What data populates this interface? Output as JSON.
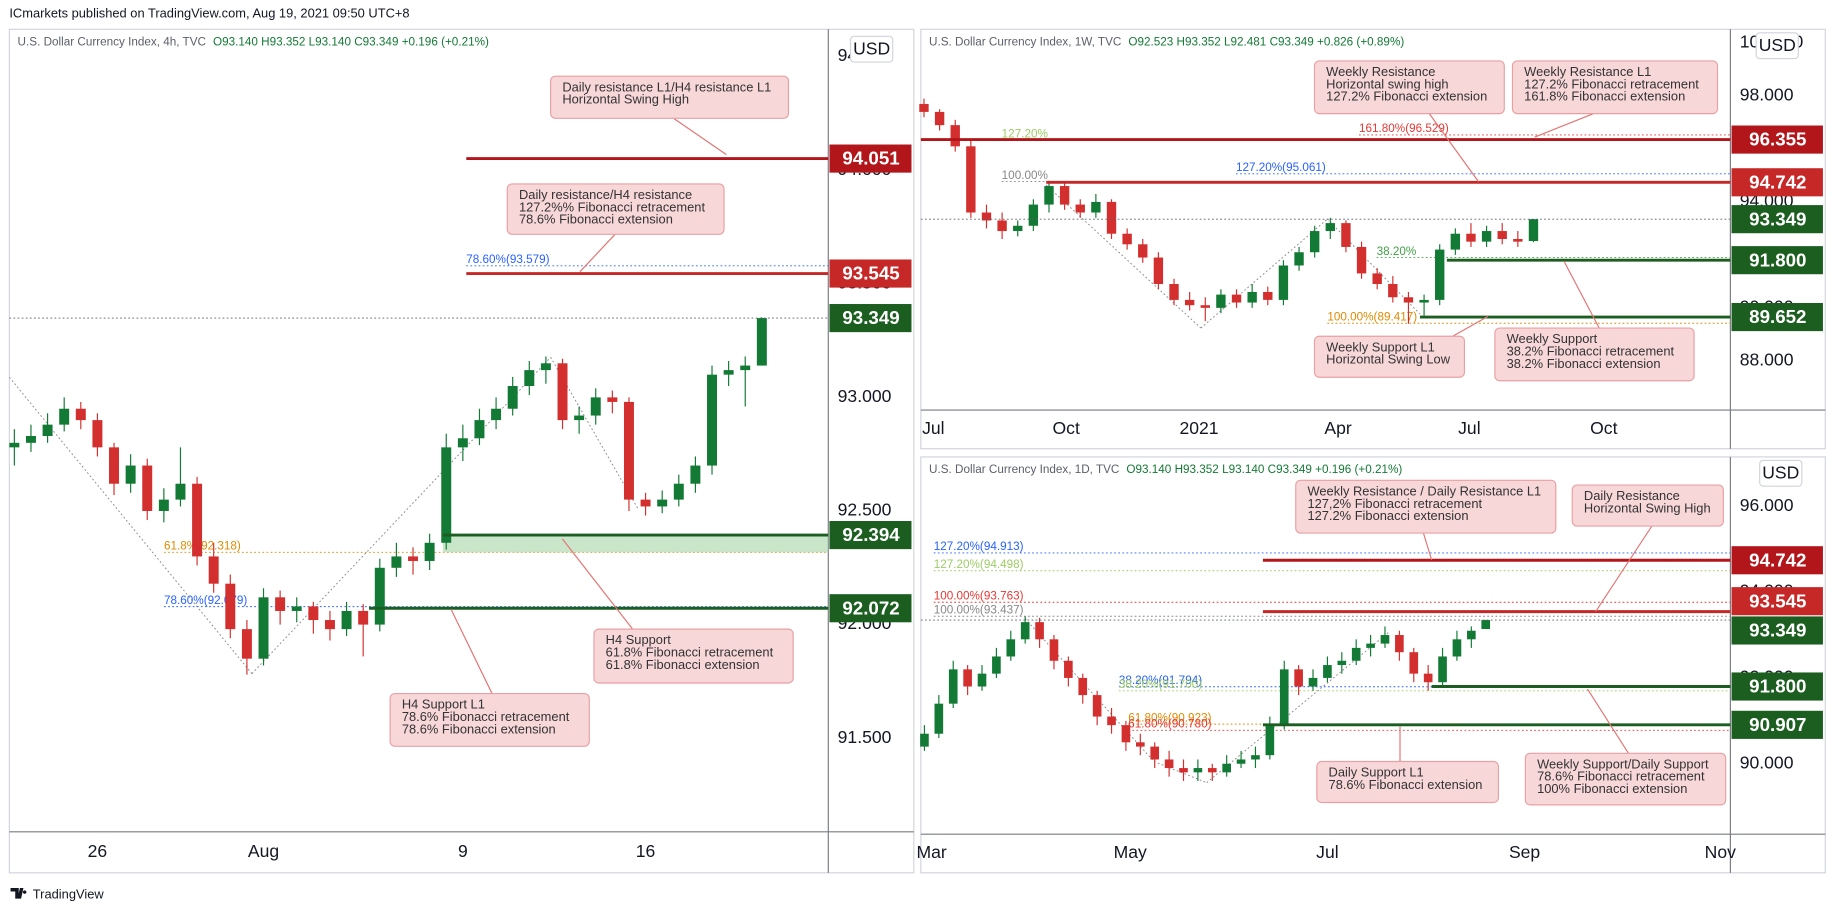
{
  "header": "ICmarkets published on TradingView.com, Aug 19, 2021 09:50 UTC+8",
  "footer": "TradingView",
  "chart_data": [
    {
      "type": "candlestick",
      "legend_name": "U.S. Dollar Currency Index, 4h, TVC",
      "legend_values": "O93.140 H93.352 L93.140 C93.349 +0.196 (+0.21%)",
      "currency": "USD",
      "up_color": "#137a35",
      "down_color": "#d32f2f",
      "ylim": [
        91.088,
        94.62
      ],
      "yticks": [
        {
          "value": 91.5,
          "label": "91.500"
        },
        {
          "value": 92,
          "label": "92.000"
        },
        {
          "value": 92.5,
          "label": "92.500"
        },
        {
          "value": 93,
          "label": "93.000"
        },
        {
          "value": 93.5,
          "label": "93.500"
        },
        {
          "value": 94,
          "label": "94.000"
        },
        {
          "value": 94.5,
          "label": "94.500"
        }
      ],
      "xlim": [
        -0.3,
        49
      ],
      "xticks": [
        {
          "value": 5,
          "label": "26"
        },
        {
          "value": 15,
          "label": "Aug"
        },
        {
          "value": 27,
          "label": "9"
        },
        {
          "value": 38,
          "label": "16"
        }
      ],
      "ohlc": [
        [
          92.78,
          92.86,
          92.7,
          92.8
        ],
        [
          92.8,
          92.88,
          92.76,
          92.83
        ],
        [
          92.83,
          92.93,
          92.8,
          92.88
        ],
        [
          92.88,
          93.0,
          92.85,
          92.95
        ],
        [
          92.95,
          92.98,
          92.86,
          92.9
        ],
        [
          92.9,
          92.93,
          92.74,
          92.78
        ],
        [
          92.78,
          92.8,
          92.57,
          92.62
        ],
        [
          92.62,
          92.75,
          92.58,
          92.7
        ],
        [
          92.7,
          92.73,
          92.46,
          92.5
        ],
        [
          92.5,
          92.6,
          92.45,
          92.55
        ],
        [
          92.55,
          92.78,
          92.52,
          92.62
        ],
        [
          92.62,
          92.65,
          92.26,
          92.3
        ],
        [
          92.3,
          92.36,
          92.14,
          92.18
        ],
        [
          92.18,
          92.22,
          91.94,
          91.98
        ],
        [
          91.98,
          92.02,
          91.78,
          91.85
        ],
        [
          91.85,
          92.16,
          91.82,
          92.12
        ],
        [
          92.12,
          92.15,
          92.0,
          92.06
        ],
        [
          92.06,
          92.12,
          92.01,
          92.08
        ],
        [
          92.08,
          92.1,
          91.96,
          92.02
        ],
        [
          92.02,
          92.06,
          91.93,
          91.98
        ],
        [
          91.98,
          92.1,
          91.95,
          92.06
        ],
        [
          92.06,
          92.09,
          91.86,
          92.0
        ],
        [
          92.0,
          92.29,
          91.97,
          92.25
        ],
        [
          92.25,
          92.36,
          92.21,
          92.3
        ],
        [
          92.3,
          92.34,
          92.22,
          92.28
        ],
        [
          92.28,
          92.4,
          92.24,
          92.36
        ],
        [
          92.36,
          92.84,
          92.33,
          92.78
        ],
        [
          92.78,
          92.88,
          92.72,
          92.82
        ],
        [
          92.82,
          92.95,
          92.79,
          92.9
        ],
        [
          92.9,
          93.0,
          92.86,
          92.95
        ],
        [
          92.95,
          93.09,
          92.92,
          93.05
        ],
        [
          93.05,
          93.16,
          93.01,
          93.12
        ],
        [
          93.12,
          93.18,
          93.06,
          93.15
        ],
        [
          93.15,
          93.17,
          92.86,
          92.9
        ],
        [
          92.9,
          92.96,
          92.84,
          92.92
        ],
        [
          92.92,
          93.04,
          92.88,
          93.0
        ],
        [
          93.0,
          93.03,
          92.93,
          92.98
        ],
        [
          92.98,
          93.0,
          92.5,
          92.55
        ],
        [
          92.55,
          92.58,
          92.48,
          92.52
        ],
        [
          92.52,
          92.59,
          92.49,
          92.55
        ],
        [
          92.55,
          92.66,
          92.52,
          92.62
        ],
        [
          92.62,
          92.74,
          92.58,
          92.7
        ],
        [
          92.7,
          93.14,
          92.66,
          93.1
        ],
        [
          93.1,
          93.16,
          93.05,
          93.12
        ],
        [
          93.12,
          93.18,
          92.96,
          93.14
        ],
        [
          93.14,
          93.352,
          93.14,
          93.349
        ]
      ],
      "levels": [
        {
          "value": 94.051,
          "color": "#b2161b"
        },
        {
          "value": 93.545,
          "color": "#c62828"
        },
        {
          "value": 93.349,
          "color": "#1b5e20",
          "dashed": true
        },
        {
          "value": 92.394,
          "color": "#1b5e20",
          "zone": 92.318
        },
        {
          "value": 92.072,
          "color": "#1b5e20"
        }
      ],
      "fibs": [
        {
          "label": "78.60%(93.579)",
          "value": 93.579,
          "color": "#2962ff"
        },
        {
          "label": "61.8%(92.318)",
          "value": 92.318,
          "color": "#e08a00"
        },
        {
          "label": "78.60%(92.079)",
          "value": 92.079,
          "color": "#2962ff"
        }
      ],
      "callouts": [
        {
          "lines": [
            "Daily resistance L1/H4 resistance L1",
            "Horizontal Swing High"
          ]
        },
        {
          "lines": [
            "Daily resistance/H4 resistance",
            "127.2%% Fibonacci retracement",
            "78.6% Fibonacci extension"
          ]
        },
        {
          "lines": [
            "H4 Support",
            "61.8% Fibonacci retracement",
            "61.8% Fibonacci extension"
          ]
        },
        {
          "lines": [
            "H4 Support L1",
            "78.6% Fibonacci retracement",
            "78.6% Fibonacci extension"
          ]
        }
      ]
    },
    {
      "type": "candlestick",
      "legend_name": "U.S. Dollar Currency Index, 1W, TVC",
      "legend_values": "O92.523 H93.352 L92.481 C93.349 +0.826 (+0.89%)",
      "currency": "USD",
      "up_color": "#137a35",
      "down_color": "#d32f2f",
      "ylim": [
        86.14,
        100.52
      ],
      "yticks": [
        {
          "value": 88,
          "label": "88.000"
        },
        {
          "value": 90,
          "label": "90.000"
        },
        {
          "value": 92,
          "label": "92.000"
        },
        {
          "value": 94,
          "label": "94.000"
        },
        {
          "value": 96,
          "label": "96.000"
        },
        {
          "value": 98,
          "label": "98.000"
        },
        {
          "value": 100,
          "label": "100.000"
        }
      ],
      "xlim": [
        -0.2,
        51.6
      ],
      "xticks": [
        {
          "value": 0.6,
          "label": "Jul"
        },
        {
          "value": 9.1,
          "label": "Oct"
        },
        {
          "value": 17.6,
          "label": "2021"
        },
        {
          "value": 26.5,
          "label": "Apr"
        },
        {
          "value": 34.9,
          "label": "Jul"
        },
        {
          "value": 43.5,
          "label": "Oct"
        }
      ],
      "ohlc": [
        [
          97.7,
          97.9,
          97.2,
          97.4
        ],
        [
          97.4,
          97.5,
          96.7,
          96.9
        ],
        [
          96.9,
          97.1,
          95.9,
          96.1
        ],
        [
          96.1,
          96.3,
          93.4,
          93.6
        ],
        [
          93.6,
          93.9,
          93.0,
          93.3
        ],
        [
          93.3,
          93.6,
          92.6,
          92.9
        ],
        [
          92.9,
          93.3,
          92.7,
          93.1
        ],
        [
          93.1,
          94.1,
          92.9,
          93.9
        ],
        [
          93.9,
          94.8,
          93.6,
          94.6
        ],
        [
          94.6,
          94.7,
          93.7,
          93.9
        ],
        [
          93.9,
          94.1,
          93.4,
          93.6
        ],
        [
          93.6,
          94.3,
          93.4,
          94.0
        ],
        [
          94.0,
          94.1,
          92.6,
          92.8
        ],
        [
          92.8,
          93.0,
          92.2,
          92.4
        ],
        [
          92.4,
          92.6,
          91.7,
          91.9
        ],
        [
          91.9,
          92.1,
          90.7,
          90.9
        ],
        [
          90.9,
          91.1,
          90.1,
          90.3
        ],
        [
          90.3,
          90.6,
          89.9,
          90.1
        ],
        [
          90.1,
          90.4,
          89.5,
          90.0
        ],
        [
          90.0,
          90.7,
          89.8,
          90.5
        ],
        [
          90.5,
          90.7,
          90.0,
          90.2
        ],
        [
          90.2,
          90.9,
          90.0,
          90.6
        ],
        [
          90.6,
          90.8,
          90.1,
          90.3
        ],
        [
          90.3,
          91.8,
          90.1,
          91.6
        ],
        [
          91.6,
          92.3,
          91.4,
          92.1
        ],
        [
          92.1,
          93.1,
          91.9,
          92.9
        ],
        [
          92.9,
          93.4,
          92.6,
          93.2
        ],
        [
          93.2,
          93.3,
          92.1,
          92.3
        ],
        [
          92.3,
          92.5,
          91.1,
          91.3
        ],
        [
          91.3,
          91.5,
          90.7,
          90.9
        ],
        [
          90.9,
          91.2,
          90.2,
          90.4
        ],
        [
          90.4,
          90.6,
          89.4,
          90.2
        ],
        [
          90.2,
          90.5,
          89.7,
          90.3
        ],
        [
          90.3,
          92.4,
          90.1,
          92.2
        ],
        [
          92.2,
          93.0,
          92.0,
          92.8
        ],
        [
          92.8,
          93.2,
          92.3,
          92.5
        ],
        [
          92.5,
          93.1,
          92.3,
          92.9
        ],
        [
          92.9,
          93.2,
          92.4,
          92.6
        ],
        [
          92.6,
          92.9,
          92.3,
          92.5
        ],
        [
          92.523,
          93.352,
          92.481,
          93.349
        ]
      ],
      "levels": [
        {
          "value": 96.355,
          "color": "#b2161b"
        },
        {
          "value": 94.742,
          "color": "#c62828"
        },
        {
          "value": 93.349,
          "color": "#1b5e20",
          "dashed": true
        },
        {
          "value": 91.8,
          "label": "91.800",
          "color": "#1b5e20"
        },
        {
          "value": 89.652,
          "color": "#1b5e20"
        }
      ],
      "fibs": [
        {
          "label": "161.80%(96.529)",
          "value": 96.529,
          "color": "#e53935"
        },
        {
          "label": "127.20%(95.061)",
          "value": 95.061,
          "color": "#2962ff"
        },
        {
          "label": "127.20%",
          "value": 96.32,
          "color": "#9ccc65"
        },
        {
          "label": "100.00%",
          "value": 94.77,
          "color": "#888888"
        },
        {
          "label": "38.20%",
          "value": 91.9,
          "color": "#43a047"
        },
        {
          "label": "100.00%(89.417)",
          "value": 89.417,
          "color": "#e08a00"
        }
      ],
      "callouts": [
        {
          "lines": [
            "Weekly Resistance",
            "Horizontal swing high",
            "127.2% Fibonacci extension"
          ]
        },
        {
          "lines": [
            "Weekly Resistance L1",
            "127.2% Fibonacci retracement",
            "161.8% Fibonacci extension"
          ]
        },
        {
          "lines": [
            "Weekly Support L1",
            "Horizontal Swing Low"
          ]
        },
        {
          "lines": [
            "Weekly Support",
            "38.2% Fibonacci retracement",
            "38.2% Fibonacci extension"
          ]
        }
      ]
    },
    {
      "type": "candlestick",
      "legend_name": "U.S. Dollar Currency Index, 1D, TVC",
      "legend_values": "O93.140 H93.352 L93.140 C93.349 +0.196 (+0.21%)",
      "currency": "USD",
      "up_color": "#137a35",
      "down_color": "#d32f2f",
      "ylim": [
        88.36,
        97.15
      ],
      "yticks": [
        {
          "value": 90,
          "label": "90.000"
        },
        {
          "value": 92,
          "label": "92.000"
        },
        {
          "value": 94,
          "label": "94.000"
        },
        {
          "value": 96,
          "label": "96.000"
        }
      ],
      "xlim": [
        -0.25,
        56
      ],
      "xticks": [
        {
          "value": 0.5,
          "label": "Mar"
        },
        {
          "value": 14.3,
          "label": "May"
        },
        {
          "value": 28,
          "label": "Jul"
        },
        {
          "value": 41.7,
          "label": "Sep"
        },
        {
          "value": 55.3,
          "label": "Nov"
        }
      ],
      "ohlc": [
        [
          90.4,
          90.9,
          90.3,
          90.7
        ],
        [
          90.7,
          91.6,
          90.6,
          91.4
        ],
        [
          91.4,
          92.4,
          91.3,
          92.2
        ],
        [
          92.2,
          92.3,
          91.6,
          91.8
        ],
        [
          91.8,
          92.3,
          91.7,
          92.1
        ],
        [
          92.1,
          92.7,
          92.0,
          92.5
        ],
        [
          92.5,
          93.1,
          92.4,
          92.9
        ],
        [
          92.9,
          93.437,
          92.8,
          93.3
        ],
        [
          93.3,
          93.4,
          92.7,
          92.9
        ],
        [
          92.9,
          93.0,
          92.2,
          92.4
        ],
        [
          92.4,
          92.5,
          91.8,
          92.0
        ],
        [
          92.0,
          92.1,
          91.4,
          91.6
        ],
        [
          91.6,
          91.7,
          90.9,
          91.1
        ],
        [
          91.1,
          91.3,
          90.7,
          90.9
        ],
        [
          90.9,
          91.0,
          90.3,
          90.5
        ],
        [
          90.5,
          90.7,
          90.2,
          90.4
        ],
        [
          90.4,
          90.5,
          89.9,
          90.1
        ],
        [
          90.1,
          90.3,
          89.7,
          89.9
        ],
        [
          89.9,
          90.1,
          89.6,
          89.8
        ],
        [
          89.8,
          90.1,
          89.6,
          89.9
        ],
        [
          89.9,
          90.0,
          89.6,
          89.8
        ],
        [
          89.8,
          90.2,
          89.7,
          90.0
        ],
        [
          90.0,
          90.3,
          89.9,
          90.1
        ],
        [
          90.1,
          90.4,
          89.9,
          90.2
        ],
        [
          90.2,
          91.1,
          90.1,
          90.9
        ],
        [
          90.9,
          92.4,
          90.8,
          92.2
        ],
        [
          92.2,
          92.3,
          91.6,
          91.8
        ],
        [
          91.8,
          92.2,
          91.7,
          92.0
        ],
        [
          92.0,
          92.5,
          91.9,
          92.3
        ],
        [
          92.3,
          92.6,
          92.1,
          92.4
        ],
        [
          92.4,
          92.9,
          92.3,
          92.7
        ],
        [
          92.7,
          93.0,
          92.5,
          92.8
        ],
        [
          92.8,
          93.2,
          92.7,
          93.0
        ],
        [
          93.0,
          93.1,
          92.4,
          92.6
        ],
        [
          92.6,
          92.7,
          91.9,
          92.1
        ],
        [
          92.1,
          92.3,
          91.7,
          91.9
        ],
        [
          91.9,
          92.7,
          91.8,
          92.5
        ],
        [
          92.5,
          93.1,
          92.4,
          92.9
        ],
        [
          92.9,
          93.2,
          92.7,
          93.1
        ],
        [
          93.14,
          93.352,
          93.14,
          93.349
        ]
      ],
      "levels": [
        {
          "value": 94.742,
          "color": "#b2161b"
        },
        {
          "value": 93.545,
          "color": "#c62828"
        },
        {
          "value": 93.349,
          "color": "#1b5e20",
          "dashed": true
        },
        {
          "value": 91.8,
          "label": "91.800",
          "color": "#1b5e20"
        },
        {
          "value": 90.907,
          "color": "#1b5e20"
        }
      ],
      "fibs": [
        {
          "label": "127.20%(94.913)",
          "value": 94.913,
          "color": "#2962ff"
        },
        {
          "label": "127.20%(94.498)",
          "value": 94.498,
          "color": "#9ccc65"
        },
        {
          "label": "100.00%(93.763)",
          "value": 93.763,
          "color": "#e53935"
        },
        {
          "label": "100.00%(93.437)",
          "value": 93.437,
          "color": "#888888"
        },
        {
          "label": "38.20%(91.794)",
          "value": 91.794,
          "color": "#2962ff"
        },
        {
          "label": "38.20%(91.700)",
          "value": 91.7,
          "color": "#9ccc65"
        },
        {
          "label": "61.80%(90.923)",
          "value": 90.923,
          "color": "#e08a00"
        },
        {
          "label": "61.80%(90.780)",
          "value": 90.78,
          "color": "#e53935"
        }
      ],
      "callouts": [
        {
          "lines": [
            "Weekly Resistance / Daily Resistance L1",
            "127,2% Fibonacci retracement",
            "127.2% Fibonacci extension"
          ]
        },
        {
          "lines": [
            "Daily Resistance",
            "Horizontal Swing High"
          ]
        },
        {
          "lines": [
            "Daily Support L1",
            "78.6% Fibonacci extension"
          ]
        },
        {
          "lines": [
            "Weekly Support/Daily Support",
            "78.6% Fibonacci retracement",
            "100% Fibonacci extension"
          ]
        }
      ]
    }
  ]
}
